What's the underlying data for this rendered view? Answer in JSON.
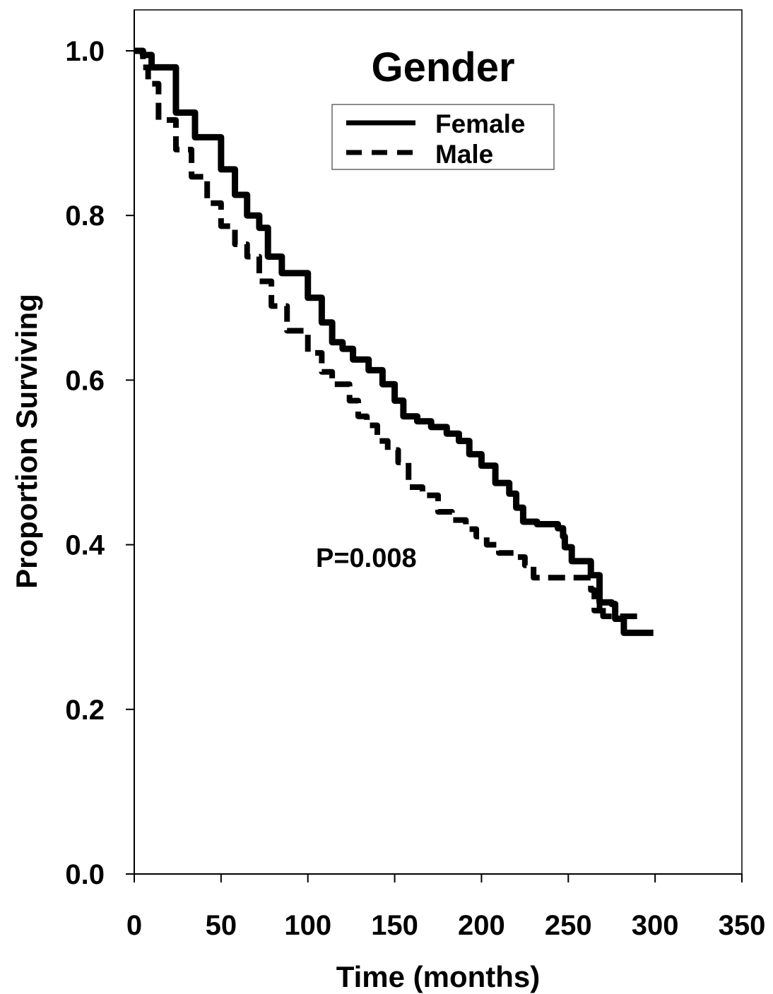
{
  "chart_data": {
    "type": "line",
    "title": "Gender",
    "xlabel": "Time (months)",
    "ylabel": "Proportion Surviving",
    "xlim": [
      0,
      350
    ],
    "ylim": [
      0,
      1.0
    ],
    "xticks": [
      "0",
      "50",
      "100",
      "150",
      "200",
      "250",
      "300",
      "350"
    ],
    "yticks": [
      "0.0",
      "0.2",
      "0.4",
      "0.6",
      "0.8",
      "1.0"
    ],
    "grid": false,
    "legend_position": "top-center",
    "annotation": "P=0.008",
    "series": [
      {
        "name": "Female",
        "style": "solid",
        "x": [
          0,
          5,
          10,
          24,
          35,
          50,
          58,
          65,
          72,
          77,
          85,
          100,
          108,
          114,
          120,
          126,
          135,
          143,
          150,
          155,
          163,
          171,
          180,
          187,
          193,
          200,
          208,
          216,
          220,
          224,
          232,
          244,
          247,
          248,
          252,
          260,
          263,
          266,
          268,
          270,
          275,
          277,
          282,
          299
        ],
        "y": [
          1.0,
          0.995,
          0.98,
          0.925,
          0.895,
          0.856,
          0.825,
          0.8,
          0.785,
          0.75,
          0.73,
          0.7,
          0.67,
          0.646,
          0.638,
          0.625,
          0.612,
          0.595,
          0.575,
          0.556,
          0.55,
          0.543,
          0.535,
          0.526,
          0.51,
          0.496,
          0.475,
          0.462,
          0.445,
          0.428,
          0.425,
          0.42,
          0.41,
          0.397,
          0.38,
          0.38,
          0.363,
          0.363,
          0.33,
          0.33,
          0.328,
          0.31,
          0.293,
          0.293
        ]
      },
      {
        "name": "Male",
        "style": "dashed",
        "x": [
          0,
          5,
          8,
          14,
          24,
          33,
          42,
          50,
          58,
          65,
          72,
          79,
          88,
          100,
          108,
          114,
          124,
          129,
          134,
          140,
          146,
          152,
          158,
          166,
          175,
          183,
          191,
          197,
          203,
          210,
          220,
          225,
          230,
          240,
          250,
          262,
          263,
          265,
          268,
          270,
          278,
          285,
          293
        ],
        "y": [
          1.0,
          0.98,
          0.96,
          0.916,
          0.88,
          0.847,
          0.815,
          0.787,
          0.765,
          0.75,
          0.72,
          0.69,
          0.66,
          0.633,
          0.61,
          0.595,
          0.575,
          0.556,
          0.545,
          0.526,
          0.515,
          0.5,
          0.47,
          0.46,
          0.44,
          0.43,
          0.419,
          0.41,
          0.4,
          0.39,
          0.385,
          0.375,
          0.36,
          0.36,
          0.36,
          0.36,
          0.345,
          0.32,
          0.33,
          0.313,
          0.313,
          0.313,
          0.313
        ]
      }
    ]
  }
}
